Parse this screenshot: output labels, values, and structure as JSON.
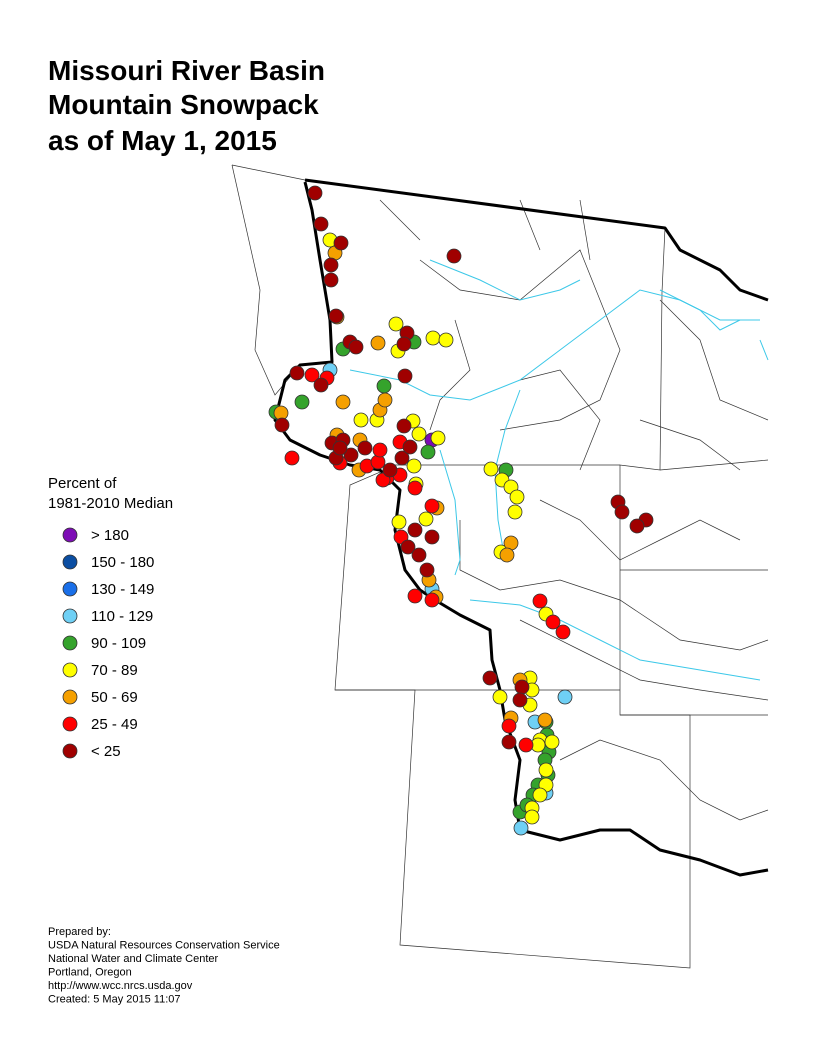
{
  "title": [
    "Missouri River Basin",
    "Mountain Snowpack",
    "as of May 1, 2015"
  ],
  "legend": {
    "title": [
      "Percent of",
      "1981-2010 Median"
    ],
    "items": [
      {
        "label": "> 180",
        "color": "#7d0db5"
      },
      {
        "label": "150 - 180",
        "color": "#0b4ea2"
      },
      {
        "label": "130 - 149",
        "color": "#1a6fe8"
      },
      {
        "label": "110 - 129",
        "color": "#6fd0f5"
      },
      {
        "label": "90 - 109",
        "color": "#35a32c"
      },
      {
        "label": "70 - 89",
        "color": "#ffff00"
      },
      {
        "label": "50 - 69",
        "color": "#f5a000"
      },
      {
        "label": "25 - 49",
        "color": "#ff0000"
      },
      {
        "label": "< 25",
        "color": "#a00000"
      }
    ]
  },
  "footer": [
    "Prepared by:",
    "USDA Natural Resources Conservation Service",
    "National Water and Climate Center",
    "Portland, Oregon",
    "http://www.wcc.nrcs.usda.gov",
    "Created:   5 May 2015   11:07"
  ]
}
